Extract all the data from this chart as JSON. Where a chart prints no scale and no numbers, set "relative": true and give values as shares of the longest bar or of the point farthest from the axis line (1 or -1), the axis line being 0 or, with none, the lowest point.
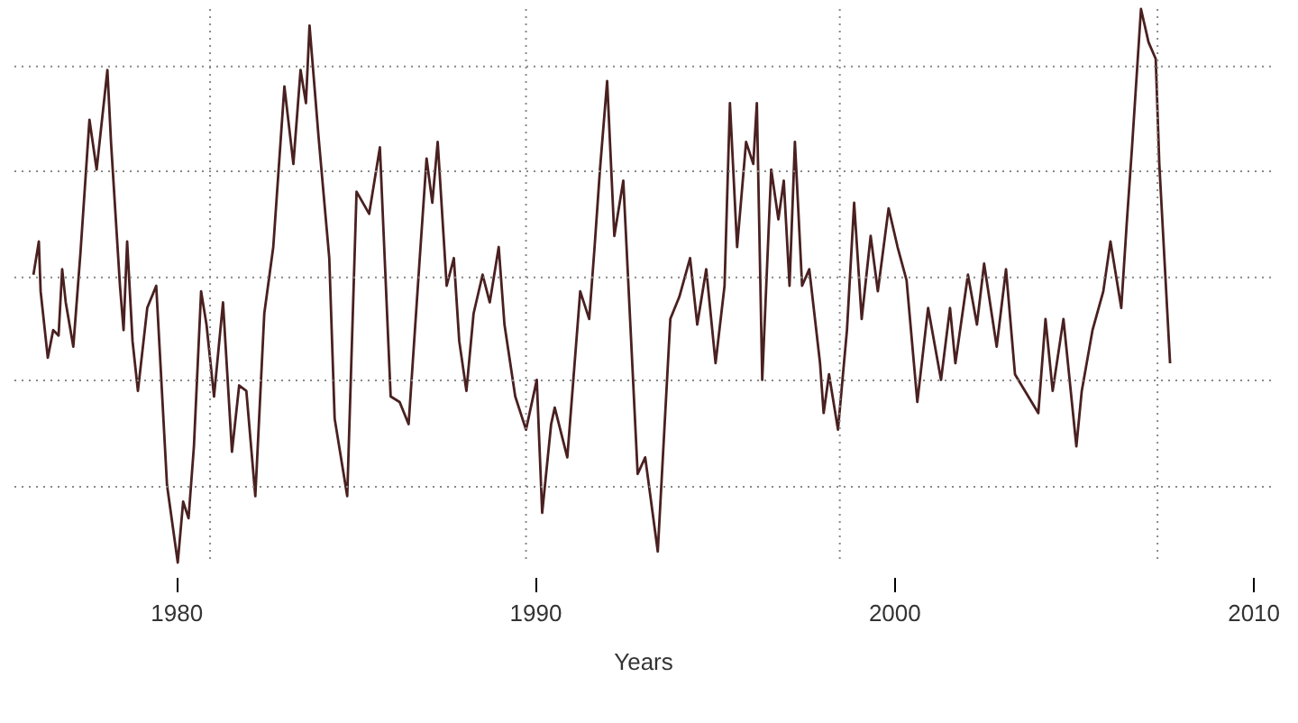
{
  "chart_data": {
    "type": "line",
    "relative": true,
    "xlabel": "Years",
    "xlim": [
      1975.5,
      2010.5
    ],
    "xticks": [
      1980,
      1990,
      2000,
      2010
    ],
    "line_style": "solid",
    "x": [
      1976.03,
      1976.18,
      1976.23,
      1976.43,
      1976.58,
      1976.73,
      1976.83,
      1976.93,
      1977.14,
      1977.34,
      1977.59,
      1977.79,
      1977.89,
      1978.09,
      1978.19,
      1978.44,
      1978.54,
      1978.64,
      1978.79,
      1978.94,
      1979.2,
      1979.45,
      1979.75,
      1980.05,
      1980.2,
      1980.35,
      1980.5,
      1980.7,
      1980.85,
      1981.06,
      1981.31,
      1981.56,
      1981.76,
      1981.96,
      1982.21,
      1982.46,
      1982.71,
      1983.02,
      1983.27,
      1983.47,
      1983.62,
      1983.72,
      1983.97,
      1984.27,
      1984.42,
      1984.77,
      1985.03,
      1985.38,
      1985.68,
      1985.98,
      1986.23,
      1986.48,
      1986.78,
      1986.98,
      1987.14,
      1987.29,
      1987.54,
      1987.74,
      1987.89,
      1988.09,
      1988.29,
      1988.54,
      1988.74,
      1988.99,
      1989.15,
      1989.45,
      1989.75,
      1990.05,
      1990.2,
      1990.45,
      1990.55,
      1990.9,
      1991.26,
      1991.51,
      1991.66,
      1991.81,
      1992.01,
      1992.21,
      1992.46,
      1992.86,
      1993.07,
      1993.42,
      1993.77,
      1994.02,
      1994.32,
      1994.52,
      1994.77,
      1995.03,
      1995.28,
      1995.43,
      1995.63,
      1995.88,
      1996.08,
      1996.18,
      1996.33,
      1996.58,
      1996.78,
      1996.93,
      1997.09,
      1997.24,
      1997.44,
      1997.64,
      1997.94,
      1998.04,
      1998.19,
      1998.44,
      1998.69,
      1998.89,
      1999.1,
      1999.35,
      1999.55,
      1999.85,
      2000.1,
      2000.35,
      2000.65,
      2000.95,
      2001.31,
      2001.56,
      2001.71,
      2002.06,
      2002.31,
      2002.51,
      2002.86,
      2003.12,
      2003.37,
      2004.02,
      2004.22,
      2004.42,
      2004.72,
      2005.08,
      2005.23,
      2005.53,
      2005.83,
      2006.03,
      2006.33,
      2006.48,
      2006.63,
      2006.88,
      2007.09,
      2007.29,
      2007.39,
      2007.69
    ],
    "series": [
      {
        "color": "#4a2020",
        "values": [
          0.52,
          0.58,
          0.49,
          0.37,
          0.42,
          0.41,
          0.53,
          0.47,
          0.39,
          0.56,
          0.8,
          0.71,
          0.77,
          0.89,
          0.76,
          0.5,
          0.42,
          0.58,
          0.4,
          0.31,
          0.46,
          0.5,
          0.14,
          0,
          0.11,
          0.08,
          0.21,
          0.49,
          0.43,
          0.3,
          0.47,
          0.2,
          0.32,
          0.31,
          0.12,
          0.45,
          0.57,
          0.86,
          0.72,
          0.89,
          0.83,
          0.97,
          0.77,
          0.55,
          0.26,
          0.12,
          0.67,
          0.63,
          0.75,
          0.3,
          0.29,
          0.25,
          0.54,
          0.73,
          0.65,
          0.76,
          0.5,
          0.55,
          0.4,
          0.31,
          0.45,
          0.52,
          0.47,
          0.57,
          0.43,
          0.3,
          0.24,
          0.33,
          0.09,
          0.25,
          0.28,
          0.19,
          0.49,
          0.44,
          0.57,
          0.71,
          0.87,
          0.59,
          0.69,
          0.16,
          0.19,
          0.02,
          0.44,
          0.48,
          0.55,
          0.43,
          0.53,
          0.36,
          0.5,
          0.83,
          0.57,
          0.76,
          0.72,
          0.83,
          0.33,
          0.71,
          0.62,
          0.69,
          0.5,
          0.76,
          0.5,
          0.53,
          0.36,
          0.27,
          0.34,
          0.24,
          0.42,
          0.65,
          0.44,
          0.59,
          0.49,
          0.64,
          0.57,
          0.51,
          0.29,
          0.46,
          0.33,
          0.46,
          0.36,
          0.52,
          0.43,
          0.54,
          0.39,
          0.53,
          0.34,
          0.27,
          0.44,
          0.31,
          0.44,
          0.21,
          0.31,
          0.42,
          0.49,
          0.58,
          0.46,
          0.61,
          0.75,
          1,
          0.94,
          0.91,
          0.72,
          0.36
        ]
      }
    ],
    "ref_lines": [
      {
        "axis": "x",
        "value": 1980.95,
        "line_style": "dotted",
        "color": "#888888"
      },
      {
        "axis": "x",
        "value": 1989.75,
        "line_style": "dotted",
        "color": "#888888"
      },
      {
        "axis": "x",
        "value": 1998.49,
        "line_style": "dotted",
        "color": "#888888"
      },
      {
        "axis": "x",
        "value": 2007.34,
        "line_style": "dotted",
        "color": "#888888"
      },
      {
        "axis": "y",
        "value": 0.896,
        "line_style": "dotted",
        "color": "#888888"
      },
      {
        "axis": "y",
        "value": 0.707,
        "line_style": "dotted",
        "color": "#888888"
      },
      {
        "axis": "y",
        "value": 0.515,
        "line_style": "dotted",
        "color": "#888888"
      },
      {
        "axis": "y",
        "value": 0.329,
        "line_style": "dotted",
        "color": "#888888"
      },
      {
        "axis": "y",
        "value": 0.137,
        "line_style": "dotted",
        "color": "#888888"
      }
    ]
  }
}
